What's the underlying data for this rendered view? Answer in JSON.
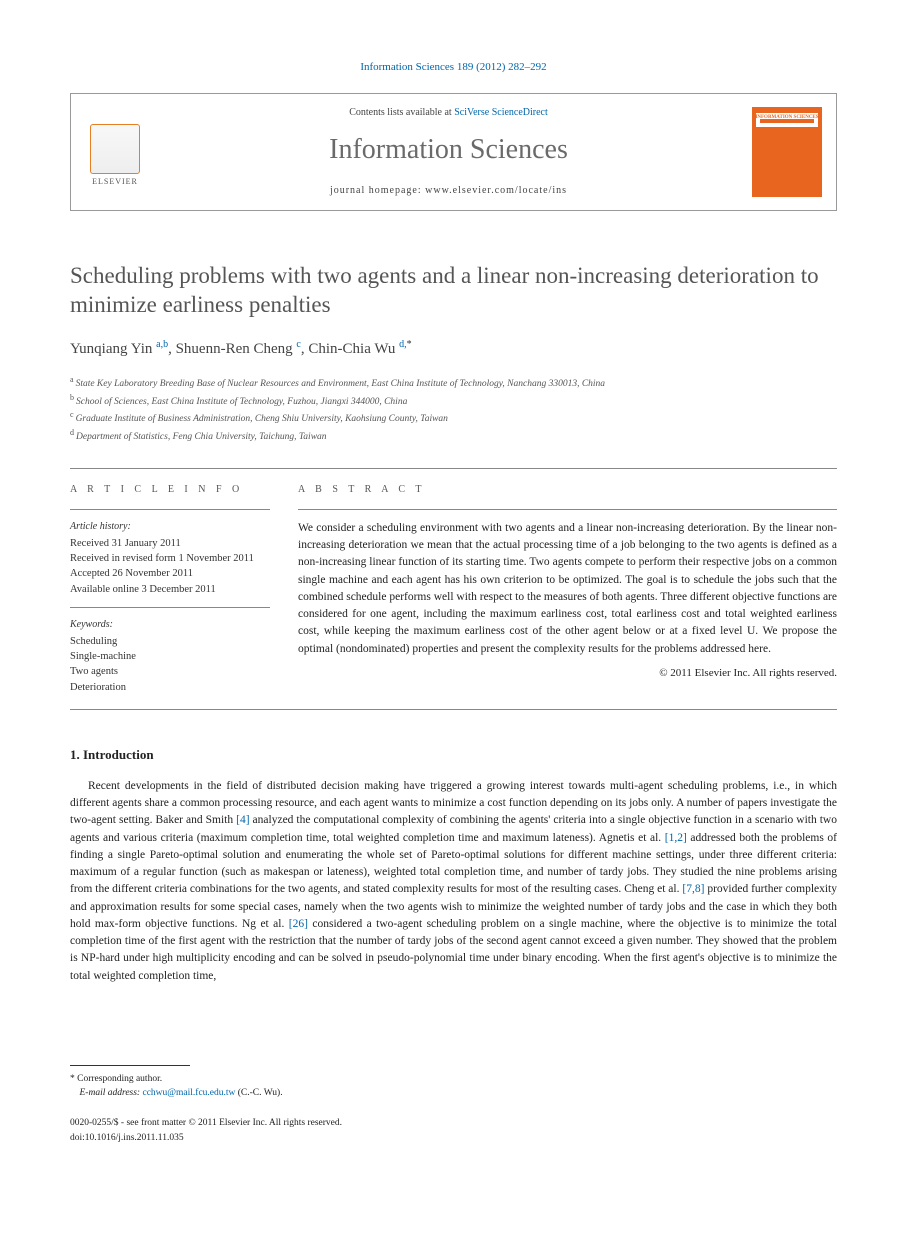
{
  "journal_ref": "Information Sciences 189 (2012) 282–292",
  "header_box": {
    "contents_prefix": "Contents lists available at ",
    "contents_link": "SciVerse ScienceDirect",
    "journal_title": "Information Sciences",
    "homepage_prefix": "journal homepage: ",
    "homepage_url": "www.elsevier.com/locate/ins",
    "publisher_logo_text": "ELSEVIER",
    "cover_label": "INFORMATION SCIENCES"
  },
  "title": "Scheduling problems with two agents and a linear non-increasing deterioration to minimize earliness penalties",
  "authors": [
    {
      "name": "Yunqiang Yin",
      "sup": "a,b"
    },
    {
      "name": "Shuenn-Ren Cheng",
      "sup": "c"
    },
    {
      "name": "Chin-Chia Wu",
      "sup": "d,",
      "corr": true
    }
  ],
  "author_sep": ", ",
  "corr_marker": "*",
  "affiliations": [
    {
      "sup": "a",
      "text": "State Key Laboratory Breeding Base of Nuclear Resources and Environment, East China Institute of Technology, Nanchang 330013, China"
    },
    {
      "sup": "b",
      "text": "School of Sciences, East China Institute of Technology, Fuzhou, Jiangxi 344000, China"
    },
    {
      "sup": "c",
      "text": "Graduate Institute of Business Administration, Cheng Shiu University, Kaohsiung County, Taiwan"
    },
    {
      "sup": "d",
      "text": "Department of Statistics, Feng Chia University, Taichung, Taiwan"
    }
  ],
  "info": {
    "head": "A R T I C L E   I N F O",
    "history_head": "Article history:",
    "history": [
      "Received 31 January 2011",
      "Received in revised form 1 November 2011",
      "Accepted 26 November 2011",
      "Available online 3 December 2011"
    ],
    "keywords_head": "Keywords:",
    "keywords": [
      "Scheduling",
      "Single-machine",
      "Two agents",
      "Deterioration"
    ]
  },
  "abstract": {
    "head": "A B S T R A C T",
    "text": "We consider a scheduling environment with two agents and a linear non-increasing deterioration. By the linear non-increasing deterioration we mean that the actual processing time of a job belonging to the two agents is defined as a non-increasing linear function of its starting time. Two agents compete to perform their respective jobs on a common single machine and each agent has his own criterion to be optimized. The goal is to schedule the jobs such that the combined schedule performs well with respect to the measures of both agents. Three different objective functions are considered for one agent, including the maximum earliness cost, total earliness cost and total weighted earliness cost, while keeping the maximum earliness cost of the other agent below or at a fixed level U. We propose the optimal (nondominated) properties and present the complexity results for the problems addressed here.",
    "copyright": "© 2011 Elsevier Inc. All rights reserved."
  },
  "section1": {
    "title": "1. Introduction",
    "body_parts": [
      "Recent developments in the field of distributed decision making have triggered a growing interest towards multi-agent scheduling problems, i.e., in which different agents share a common processing resource, and each agent wants to minimize a cost function depending on its jobs only. A number of papers investigate the two-agent setting. Baker and Smith ",
      "[4]",
      " analyzed the computational complexity of combining the agents' criteria into a single objective function in a scenario with two agents and various criteria (maximum completion time, total weighted completion time and maximum lateness). Agnetis et al. ",
      "[1,2]",
      " addressed both the problems of finding a single Pareto-optimal solution and enumerating the whole set of Pareto-optimal solutions for different machine settings, under three different criteria: maximum of a regular function (such as makespan or lateness), weighted total completion time, and number of tardy jobs. They studied the nine problems arising from the different criteria combinations for the two agents, and stated complexity results for most of the resulting cases. Cheng et al. ",
      "[7,8]",
      " provided further complexity and approximation results for some special cases, namely when the two agents wish to minimize the weighted number of tardy jobs and the case in which they both hold max-form objective functions. Ng et al. ",
      "[26]",
      " considered a two-agent scheduling problem on a single machine, where the objective is to minimize the total completion time of the first agent with the restriction that the number of tardy jobs of the second agent cannot exceed a given number. They showed that the problem is NP-hard under high multiplicity encoding and can be solved in pseudo-polynomial time under binary encoding. When the first agent's objective is to minimize the total weighted completion time,"
    ]
  },
  "footer": {
    "corr_label": "* Corresponding author.",
    "email_label": "E-mail address:",
    "email": "cchwu@mail.fcu.edu.tw",
    "email_name": "(C.-C. Wu).",
    "meta1": "0020-0255/$ - see front matter © 2011 Elsevier Inc. All rights reserved.",
    "meta2": "doi:10.1016/j.ins.2011.11.035"
  },
  "colors": {
    "link": "#0066aa",
    "accent_orange": "#e8651f",
    "text": "#222222",
    "muted": "#555555"
  }
}
